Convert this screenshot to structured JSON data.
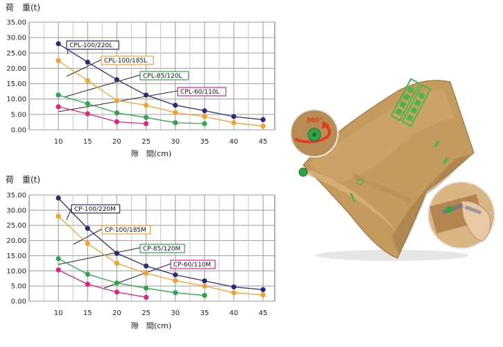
{
  "chart_data": [
    {
      "type": "line",
      "ylabel": "荷　重(t)",
      "xlabel": "隙　間(cm)",
      "ylim": [
        0,
        35
      ],
      "yticks": [
        "0.00",
        "5.00",
        "10.00",
        "15.00",
        "20.00",
        "25.00",
        "30.00",
        "35.00"
      ],
      "x": [
        10,
        15,
        20,
        25,
        30,
        35,
        40,
        45
      ],
      "grid": true,
      "series": [
        {
          "name": "CPL-100/220L",
          "color": "#2b2a75",
          "x": [
            10,
            15,
            20,
            25,
            30,
            35,
            40,
            45
          ],
          "values": [
            28,
            22,
            16.3,
            11.3,
            8,
            6.2,
            4.3,
            3.3
          ]
        },
        {
          "name": "CPL-100/185L",
          "color": "#f4a12d",
          "x": [
            10,
            15,
            20,
            25,
            30,
            35,
            40,
            45
          ],
          "values": [
            22.5,
            16,
            9.5,
            8,
            5.6,
            4.3,
            2.3,
            1.2
          ]
        },
        {
          "name": "CPL-85/120L",
          "color": "#2fa548",
          "x": [
            10,
            15,
            20,
            25,
            30,
            35
          ],
          "values": [
            11.3,
            8.5,
            5.5,
            4,
            2.3,
            2
          ]
        },
        {
          "name": "CPL-60/110L",
          "color": "#e8207f",
          "x": [
            10,
            15,
            20,
            25
          ],
          "values": [
            7.5,
            5.2,
            2.6,
            2
          ]
        }
      ]
    },
    {
      "type": "line",
      "ylabel": "荷　重(t)",
      "xlabel": "隙　間(cm)",
      "ylim": [
        0,
        35
      ],
      "yticks": [
        "0.00",
        "5.00",
        "10.00",
        "15.00",
        "20.00",
        "25.00",
        "30.00",
        "35.00"
      ],
      "x": [
        10,
        15,
        20,
        25,
        30,
        35,
        40,
        45
      ],
      "grid": true,
      "series": [
        {
          "name": "CP-100/220M",
          "color": "#2b2a75",
          "x": [
            10,
            15,
            20,
            25,
            30,
            35,
            40,
            45
          ],
          "values": [
            34,
            24,
            15.8,
            11.6,
            8.7,
            6.7,
            4.7,
            3.8
          ]
        },
        {
          "name": "CP-100/185M",
          "color": "#f4a12d",
          "x": [
            10,
            15,
            20,
            25,
            30,
            35,
            40,
            45
          ],
          "values": [
            28,
            19,
            12.5,
            9.2,
            6.8,
            5,
            2.8,
            2.1
          ]
        },
        {
          "name": "CP-85/120M",
          "color": "#2fa548",
          "x": [
            10,
            15,
            20,
            25,
            30,
            35
          ],
          "values": [
            14,
            8.9,
            6,
            4.3,
            2.8,
            1.9
          ]
        },
        {
          "name": "CP-60/110M",
          "color": "#e8207f",
          "x": [
            10,
            15,
            20,
            25
          ],
          "values": [
            10.3,
            5.6,
            3,
            1.3
          ]
        }
      ]
    }
  ],
  "photo": {
    "rotation_label": "360°",
    "colors": {
      "bag": "#c49a5e",
      "bag_dark": "#9c7440",
      "ink": "#49b54a",
      "arrow": "#e23a22"
    }
  }
}
